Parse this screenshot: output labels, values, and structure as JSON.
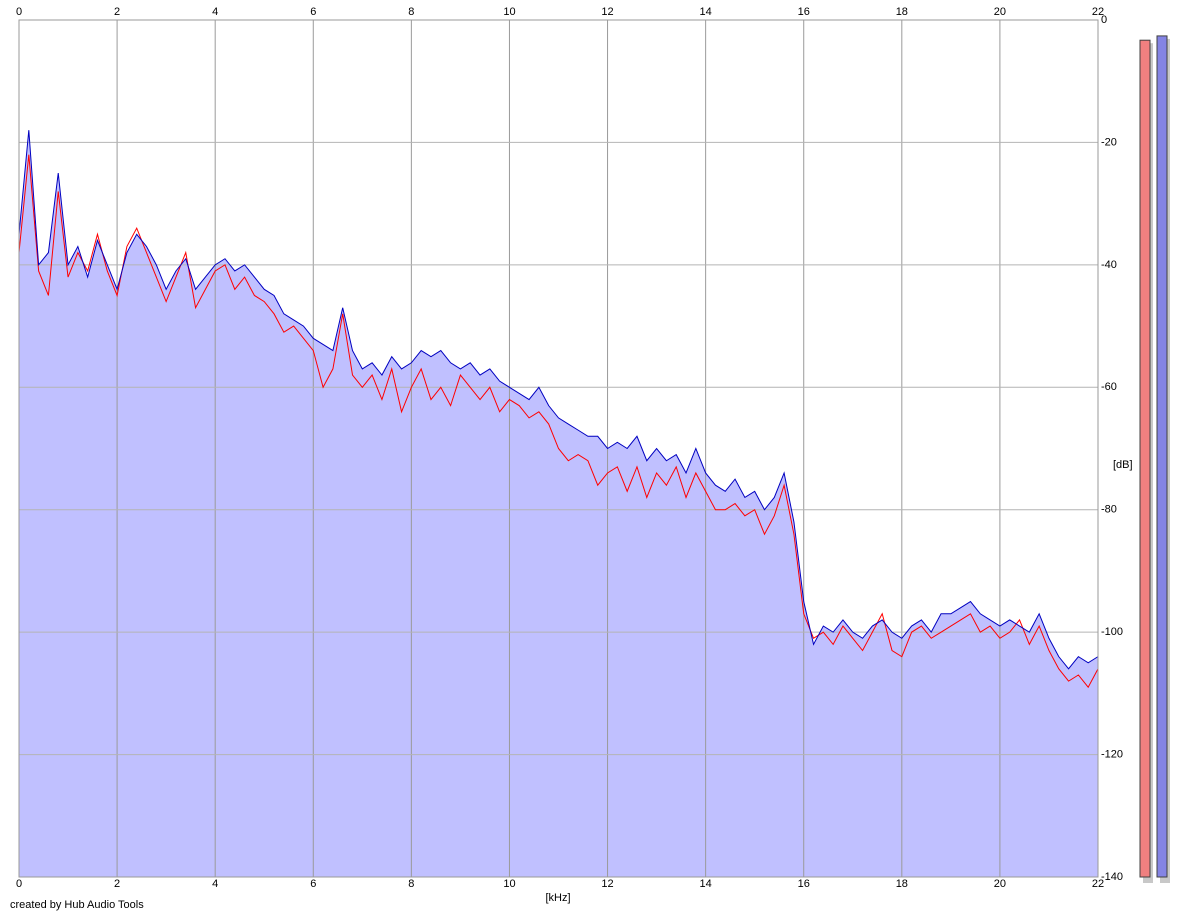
{
  "chart_data": {
    "type": "line",
    "xlabel": "[kHz]",
    "ylabel": "[dB]",
    "footer": "created by Hub Audio Tools",
    "xlim": [
      0,
      22
    ],
    "ylim": [
      -140,
      0
    ],
    "xticks": [
      0,
      2,
      4,
      6,
      8,
      10,
      12,
      14,
      16,
      18,
      20,
      22
    ],
    "yticks": [
      0,
      -20,
      -40,
      -60,
      -80,
      -100,
      -120,
      -140
    ],
    "grid": true,
    "x": [
      0,
      0.2,
      0.4,
      0.6,
      0.8,
      1,
      1.2,
      1.4,
      1.6,
      1.8,
      2,
      2.2,
      2.4,
      2.6,
      2.8,
      3,
      3.2,
      3.4,
      3.6,
      3.8,
      4,
      4.2,
      4.4,
      4.6,
      4.8,
      5,
      5.2,
      5.4,
      5.6,
      5.8,
      6,
      6.2,
      6.4,
      6.6,
      6.8,
      7,
      7.2,
      7.4,
      7.6,
      7.8,
      8,
      8.2,
      8.4,
      8.6,
      8.8,
      9,
      9.2,
      9.4,
      9.6,
      9.8,
      10,
      10.2,
      10.4,
      10.6,
      10.8,
      11,
      11.2,
      11.4,
      11.6,
      11.8,
      12,
      12.2,
      12.4,
      12.6,
      12.8,
      13,
      13.2,
      13.4,
      13.6,
      13.8,
      14,
      14.2,
      14.4,
      14.6,
      14.8,
      15,
      15.2,
      15.4,
      15.6,
      15.8,
      16,
      16.2,
      16.4,
      16.6,
      16.8,
      17,
      17.2,
      17.4,
      17.6,
      17.8,
      18,
      18.2,
      18.4,
      18.6,
      18.8,
      19,
      19.2,
      19.4,
      19.6,
      19.8,
      20,
      20.2,
      20.4,
      20.6,
      20.8,
      21,
      21.2,
      21.4,
      21.6,
      21.8,
      22
    ],
    "series": [
      {
        "color": "#ff0000",
        "values": [
          -38,
          -22,
          -41,
          -45,
          -28,
          -42,
          -38,
          -41,
          -35,
          -41,
          -45,
          -37,
          -34,
          -38,
          -42,
          -46,
          -42,
          -38,
          -47,
          -44,
          -41,
          -40,
          -44,
          -42,
          -45,
          -46,
          -48,
          -51,
          -50,
          -52,
          -54,
          -60,
          -57,
          -48,
          -58,
          -60,
          -58,
          -62,
          -57,
          -64,
          -60,
          -57,
          -62,
          -60,
          -63,
          -58,
          -60,
          -62,
          -60,
          -64,
          -62,
          -63,
          -65,
          -64,
          -66,
          -70,
          -72,
          -71,
          -72,
          -76,
          -74,
          -73,
          -77,
          -73,
          -78,
          -74,
          -76,
          -73,
          -78,
          -74,
          -77,
          -80,
          -80,
          -79,
          -81,
          -80,
          -84,
          -81,
          -76,
          -84,
          -97,
          -101,
          -100,
          -102,
          -99,
          -101,
          -103,
          -100,
          -97,
          -103,
          -104,
          -100,
          -99,
          -101,
          -100,
          -99,
          -98,
          -97,
          -100,
          -99,
          -101,
          -100,
          -98,
          -102,
          -99,
          -103,
          -106,
          -108,
          -107,
          -109,
          -106
        ]
      },
      {
        "color": "#0000c0",
        "fill": "#c0c0ff",
        "values": [
          -35,
          -18,
          -40,
          -38,
          -25,
          -40,
          -37,
          -42,
          -36,
          -40,
          -44,
          -38,
          -35,
          -37,
          -40,
          -44,
          -41,
          -39,
          -44,
          -42,
          -40,
          -39,
          -41,
          -40,
          -42,
          -44,
          -45,
          -48,
          -49,
          -50,
          -52,
          -53,
          -54,
          -47,
          -54,
          -57,
          -56,
          -58,
          -55,
          -57,
          -56,
          -54,
          -55,
          -54,
          -56,
          -57,
          -56,
          -58,
          -57,
          -59,
          -60,
          -61,
          -62,
          -60,
          -63,
          -65,
          -66,
          -67,
          -68,
          -68,
          -70,
          -69,
          -70,
          -68,
          -72,
          -70,
          -72,
          -71,
          -74,
          -70,
          -74,
          -76,
          -77,
          -75,
          -78,
          -77,
          -80,
          -78,
          -74,
          -82,
          -95,
          -102,
          -99,
          -100,
          -98,
          -100,
          -101,
          -99,
          -98,
          -100,
          -101,
          -99,
          -98,
          -100,
          -97,
          -97,
          -96,
          -95,
          -97,
          -98,
          -99,
          -98,
          -99,
          -100,
          -97,
          -101,
          -104,
          -106,
          -104,
          -105,
          -104
        ]
      }
    ],
    "meters": [
      {
        "color": "#f08080",
        "value": -3.3
      },
      {
        "color": "#8484e4",
        "value": -2.6
      }
    ]
  }
}
